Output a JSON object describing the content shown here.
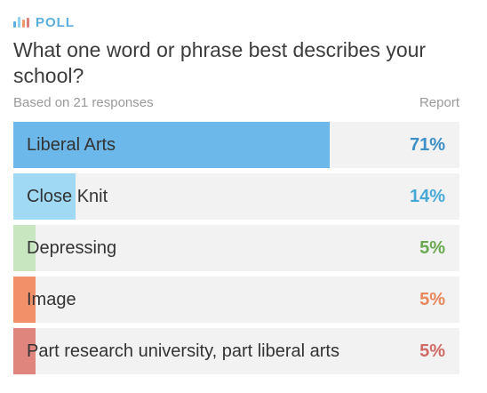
{
  "poll": {
    "label": "POLL",
    "question": "What one word or phrase best describes your school?",
    "responses_text": "Based on 21 responses",
    "report_label": "Report",
    "icon_name": "bar-chart-icon",
    "icon_colors": [
      "#5aaee0",
      "#8dd0f0",
      "#f29a6b",
      "#e07f7a"
    ],
    "options": [
      {
        "label": "Liberal Arts",
        "percent": "71%",
        "value": 71,
        "fill_color": "#6cb8ea",
        "pct_color": "#3c8fc4"
      },
      {
        "label": "Close Knit",
        "percent": "14%",
        "value": 14,
        "fill_color": "#9fd9f3",
        "pct_color": "#48a8d6"
      },
      {
        "label": "Depressing",
        "percent": "5%",
        "value": 5,
        "fill_color": "#c8e6bf",
        "pct_color": "#6aa84f"
      },
      {
        "label": "Image",
        "percent": "5%",
        "value": 5,
        "fill_color": "#f2906a",
        "pct_color": "#e8875a"
      },
      {
        "label": "Part research university, part liberal arts",
        "percent": "5%",
        "value": 5,
        "fill_color": "#e0857e",
        "pct_color": "#d06a65"
      }
    ]
  }
}
